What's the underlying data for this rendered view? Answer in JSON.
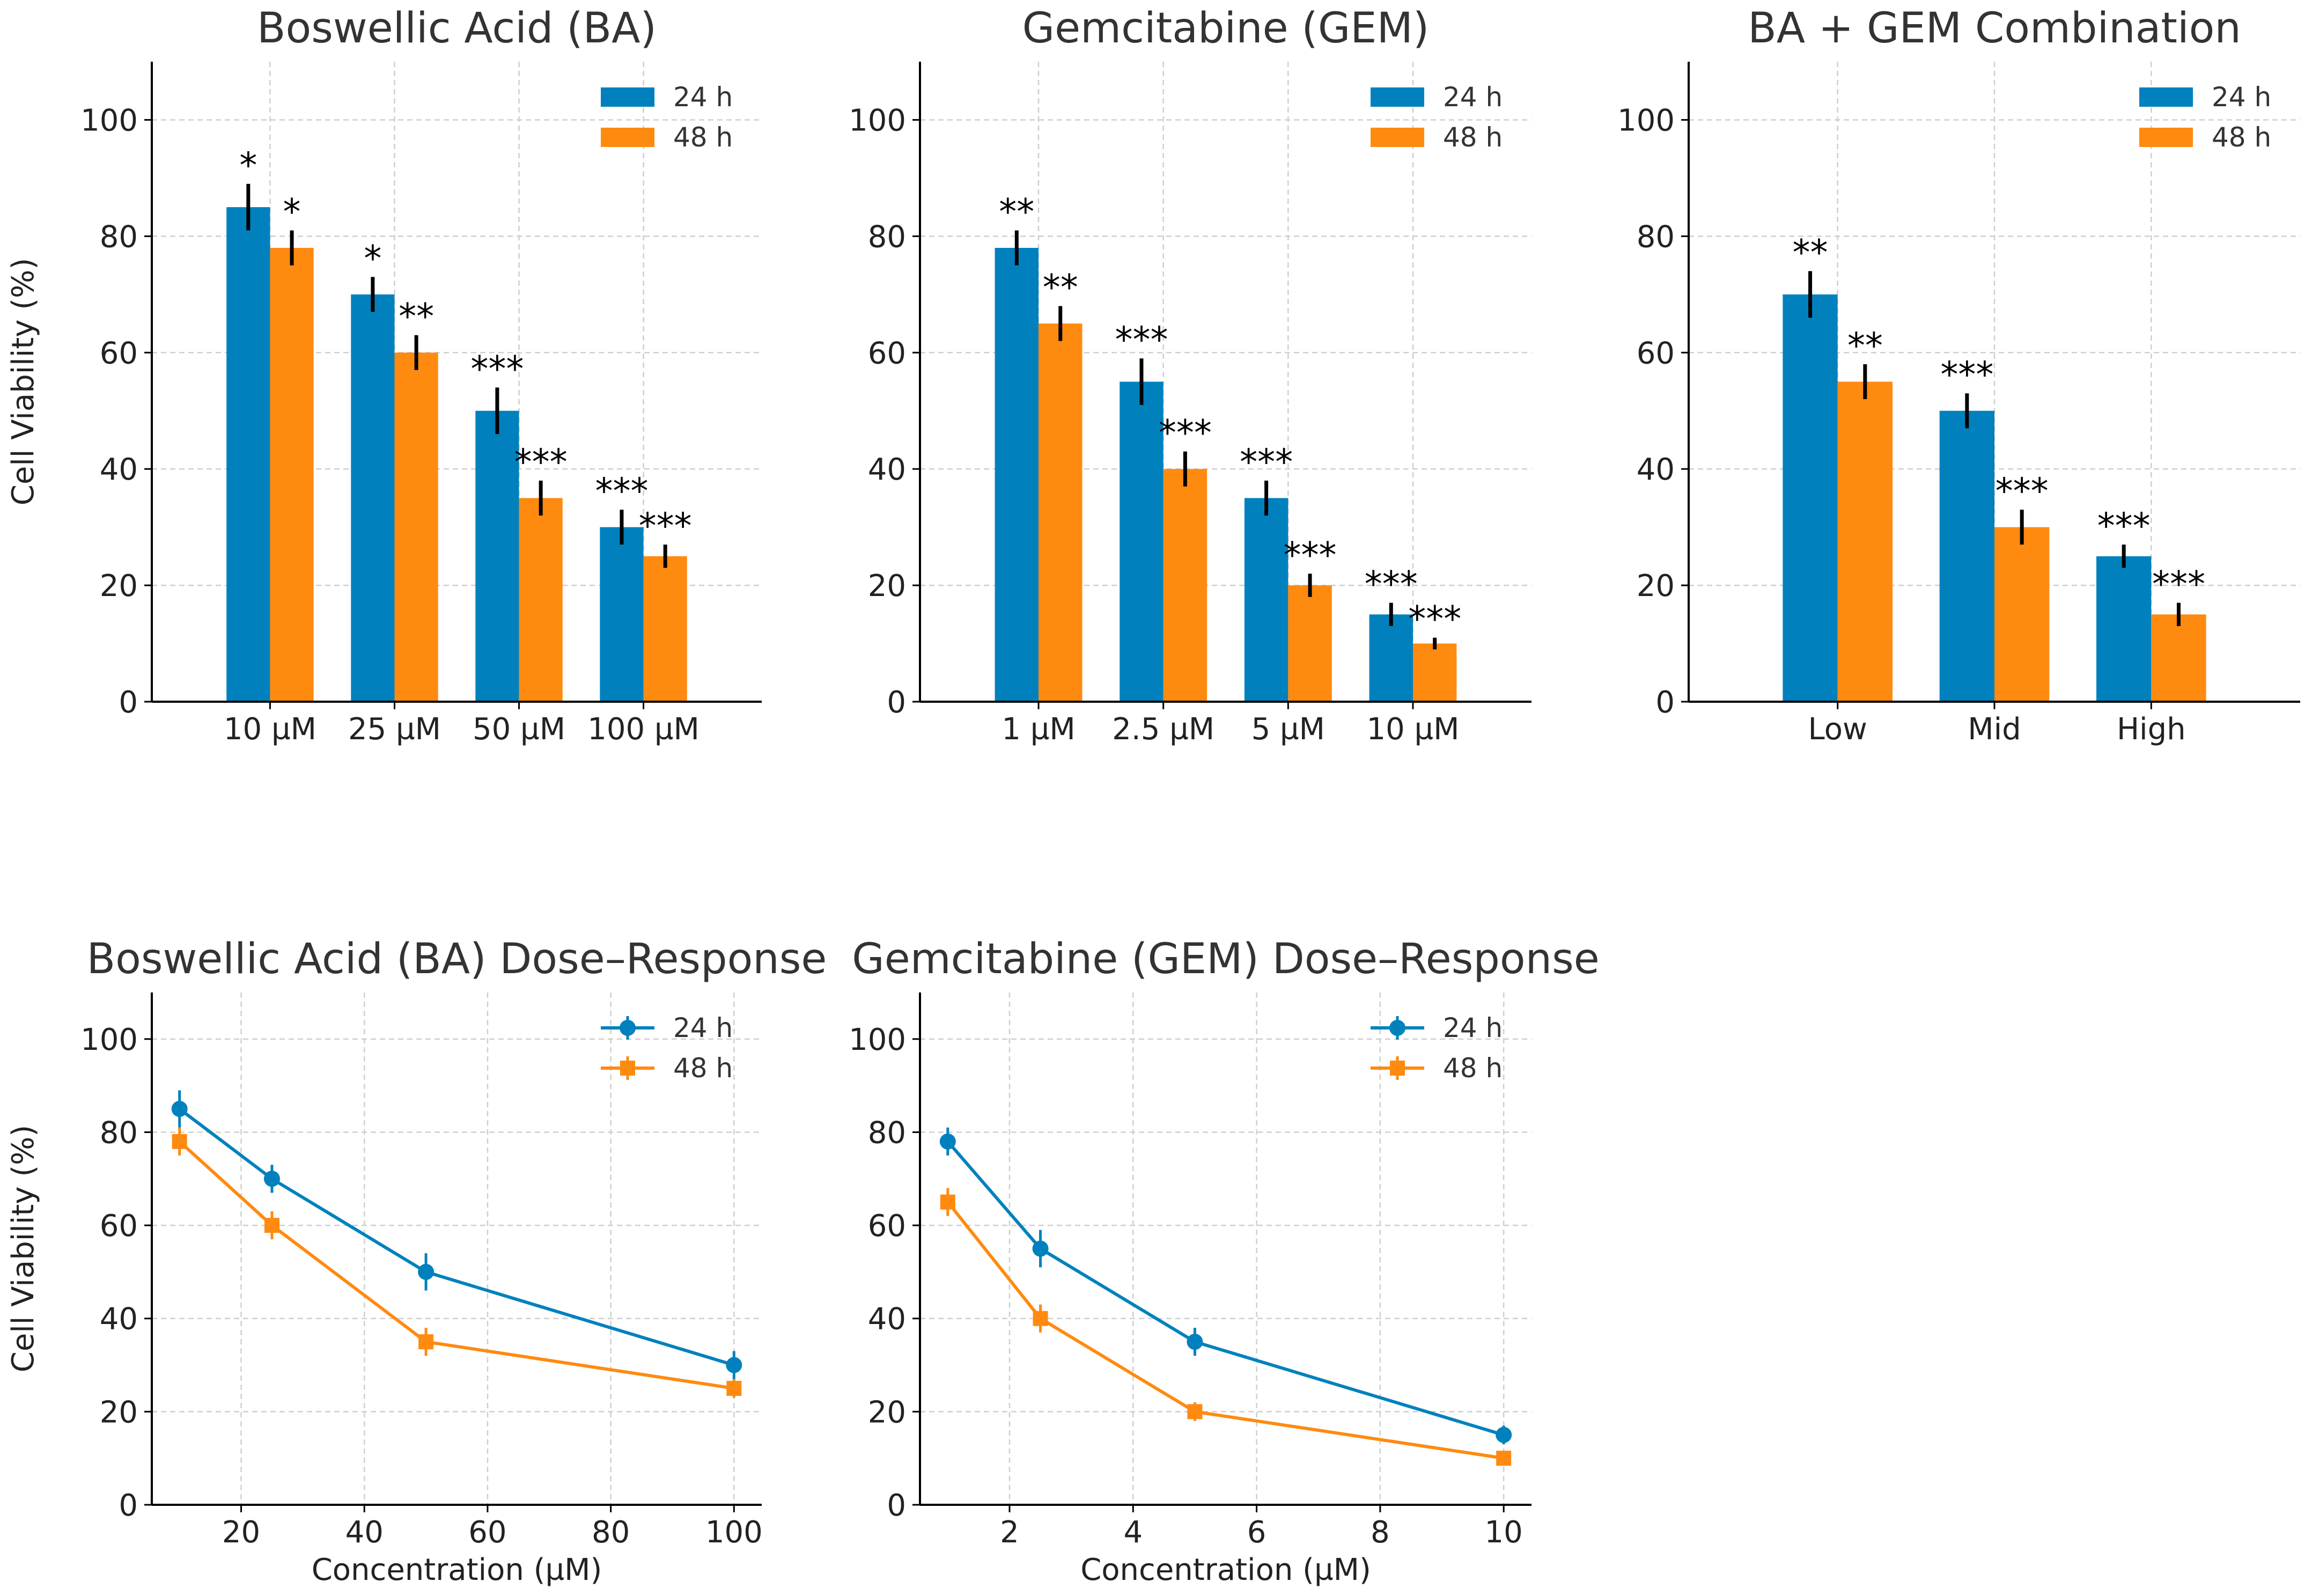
{
  "colors": {
    "h24": "#0081BD",
    "h48": "#FF8A10",
    "grid": "#cfcfcf",
    "axis": "#000000",
    "text": "#333333"
  },
  "chart_data": [
    {
      "id": "ba-bar",
      "type": "bar",
      "title": "Boswellic Acid (BA)",
      "ylabel": "Cell Viability (%)",
      "xlabel": "",
      "ylim": [
        0,
        110
      ],
      "yticks": [
        0,
        20,
        40,
        60,
        80,
        100
      ],
      "categories": [
        "10 µM",
        "25 µM",
        "50 µM",
        "100 µM"
      ],
      "legend_position": "top-right",
      "series": [
        {
          "name": "24 h",
          "values": [
            85,
            70,
            50,
            30
          ],
          "errors": [
            4,
            3,
            4,
            3
          ],
          "significance": [
            "*",
            "*",
            "***",
            "***"
          ]
        },
        {
          "name": "48 h",
          "values": [
            78,
            60,
            35,
            25
          ],
          "errors": [
            3,
            3,
            3,
            2
          ],
          "significance": [
            "*",
            "**",
            "***",
            "***"
          ]
        }
      ]
    },
    {
      "id": "gem-bar",
      "type": "bar",
      "title": "Gemcitabine (GEM)",
      "ylabel": "",
      "xlabel": "",
      "ylim": [
        0,
        110
      ],
      "yticks": [
        0,
        20,
        40,
        60,
        80,
        100
      ],
      "categories": [
        "1 µM",
        "2.5 µM",
        "5 µM",
        "10 µM"
      ],
      "legend_position": "top-right",
      "series": [
        {
          "name": "24 h",
          "values": [
            78,
            55,
            35,
            15
          ],
          "errors": [
            3,
            4,
            3,
            2
          ],
          "significance": [
            "**",
            "***",
            "***",
            "***"
          ]
        },
        {
          "name": "48 h",
          "values": [
            65,
            40,
            20,
            10
          ],
          "errors": [
            3,
            3,
            2,
            1
          ],
          "significance": [
            "**",
            "***",
            "***",
            "***"
          ]
        }
      ]
    },
    {
      "id": "combo-bar",
      "type": "bar",
      "title": "BA + GEM Combination",
      "ylabel": "",
      "xlabel": "",
      "ylim": [
        0,
        110
      ],
      "yticks": [
        0,
        20,
        40,
        60,
        80,
        100
      ],
      "categories": [
        "Low",
        "Mid",
        "High"
      ],
      "legend_position": "top-right",
      "series": [
        {
          "name": "24 h",
          "values": [
            70,
            50,
            25
          ],
          "errors": [
            4,
            3,
            2
          ],
          "significance": [
            "**",
            "***",
            "***"
          ]
        },
        {
          "name": "48 h",
          "values": [
            55,
            30,
            15
          ],
          "errors": [
            3,
            3,
            2
          ],
          "significance": [
            "**",
            "***",
            "***"
          ]
        }
      ]
    },
    {
      "id": "ba-line",
      "type": "line",
      "title": "Boswellic Acid (BA) Dose–Response",
      "ylabel": "Cell Viability (%)",
      "xlabel": "Concentration (µM)",
      "xlim": [
        5.5,
        104.5
      ],
      "xticks": [
        20,
        40,
        60,
        80,
        100
      ],
      "ylim": [
        0,
        110
      ],
      "yticks": [
        0,
        20,
        40,
        60,
        80,
        100
      ],
      "x": [
        10,
        25,
        50,
        100
      ],
      "legend_position": "top-right",
      "series": [
        {
          "name": "24 h",
          "marker": "circle",
          "values": [
            85,
            70,
            50,
            30
          ],
          "errors": [
            4,
            3,
            4,
            3
          ]
        },
        {
          "name": "48 h",
          "marker": "square",
          "values": [
            78,
            60,
            35,
            25
          ],
          "errors": [
            3,
            3,
            3,
            2
          ]
        }
      ]
    },
    {
      "id": "gem-line",
      "type": "line",
      "title": "Gemcitabine (GEM) Dose–Response",
      "ylabel": "",
      "xlabel": "Concentration (µM)",
      "xlim": [
        0.55,
        10.45
      ],
      "xticks": [
        2,
        4,
        6,
        8,
        10
      ],
      "ylim": [
        0,
        110
      ],
      "yticks": [
        0,
        20,
        40,
        60,
        80,
        100
      ],
      "x": [
        1,
        2.5,
        5,
        10
      ],
      "legend_position": "top-right",
      "series": [
        {
          "name": "24 h",
          "marker": "circle",
          "values": [
            78,
            55,
            35,
            15
          ],
          "errors": [
            3,
            4,
            3,
            2
          ]
        },
        {
          "name": "48 h",
          "marker": "square",
          "values": [
            65,
            40,
            20,
            10
          ],
          "errors": [
            3,
            3,
            2,
            1
          ]
        }
      ]
    }
  ]
}
